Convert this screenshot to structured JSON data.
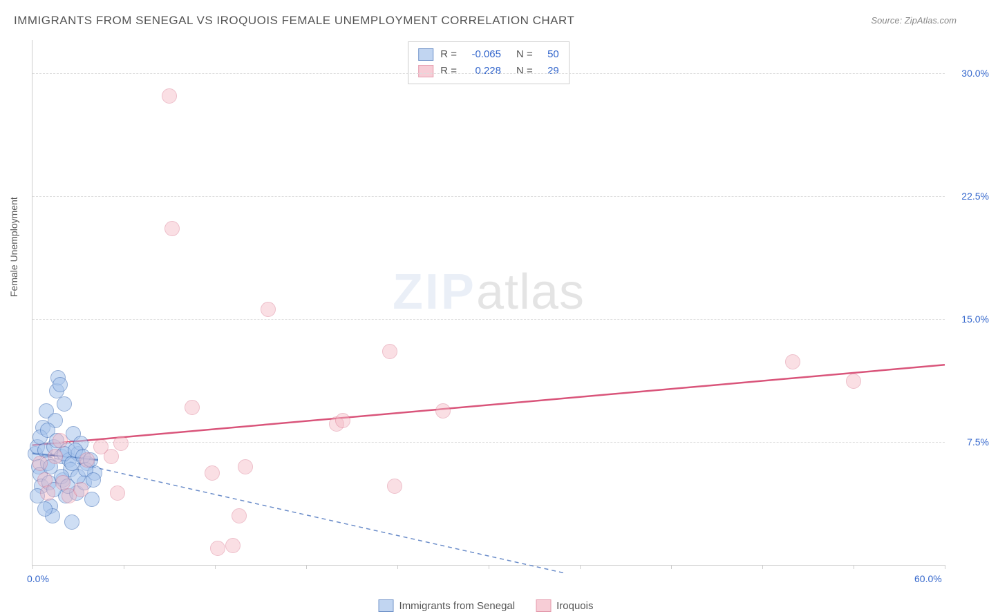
{
  "title": "IMMIGRANTS FROM SENEGAL VS IROQUOIS FEMALE UNEMPLOYMENT CORRELATION CHART",
  "source": "Source: ZipAtlas.com",
  "y_axis_label": "Female Unemployment",
  "watermark_zip": "ZIP",
  "watermark_atlas": "atlas",
  "chart": {
    "type": "scatter",
    "xlim": [
      0,
      60
    ],
    "ylim": [
      0,
      32
    ],
    "x_ticks": [
      0,
      6,
      12,
      18,
      24,
      30,
      36,
      42,
      48,
      54,
      60
    ],
    "x_tick_labels_shown": {
      "0": "0.0%",
      "60": "60.0%"
    },
    "y_ticks": [
      7.5,
      15.0,
      22.5,
      30.0
    ],
    "y_tick_labels": [
      "7.5%",
      "15.0%",
      "22.5%",
      "30.0%"
    ],
    "marker_radius": 10,
    "background_color": "#ffffff",
    "grid_color": "#dddddd",
    "axis_color": "#cccccc"
  },
  "series": [
    {
      "name": "Immigrants from Senegal",
      "fill": "#a7c4ec",
      "fill_opacity": 0.55,
      "stroke": "#3b6bb5",
      "r_value": "-0.065",
      "n_value": "50",
      "trend_solid": {
        "x1": 0,
        "y1": 6.8,
        "x2": 4.3,
        "y2": 6.4,
        "color": "#1f4fa5",
        "width": 2.5
      },
      "trend_dashed": {
        "x1": 0,
        "y1": 6.8,
        "x2": 35.0,
        "y2": -0.5,
        "color": "#6a8cc9",
        "width": 1.5,
        "dash": "6,5"
      },
      "points": [
        [
          0.2,
          6.8
        ],
        [
          0.3,
          7.2
        ],
        [
          0.4,
          6.0
        ],
        [
          0.5,
          5.5
        ],
        [
          0.6,
          4.8
        ],
        [
          0.7,
          8.4
        ],
        [
          0.8,
          7.0
        ],
        [
          0.9,
          9.4
        ],
        [
          1.0,
          6.2
        ],
        [
          1.1,
          5.0
        ],
        [
          1.2,
          3.6
        ],
        [
          1.3,
          3.0
        ],
        [
          1.4,
          7.2
        ],
        [
          1.5,
          8.8
        ],
        [
          1.6,
          10.6
        ],
        [
          1.7,
          11.4
        ],
        [
          1.8,
          11.0
        ],
        [
          1.9,
          6.6
        ],
        [
          2.0,
          5.2
        ],
        [
          2.1,
          9.8
        ],
        [
          2.2,
          4.2
        ],
        [
          2.3,
          7.0
        ],
        [
          2.4,
          6.4
        ],
        [
          2.5,
          5.8
        ],
        [
          2.6,
          2.6
        ],
        [
          2.7,
          8.0
        ],
        [
          2.9,
          4.4
        ],
        [
          3.0,
          6.8
        ],
        [
          3.2,
          7.4
        ],
        [
          3.4,
          5.0
        ],
        [
          3.6,
          6.2
        ],
        [
          3.9,
          4.0
        ],
        [
          4.1,
          5.6
        ],
        [
          0.3,
          4.2
        ],
        [
          0.5,
          7.8
        ],
        [
          0.8,
          3.4
        ],
        [
          1.0,
          8.2
        ],
        [
          1.2,
          6.0
        ],
        [
          1.4,
          4.6
        ],
        [
          1.6,
          7.6
        ],
        [
          1.9,
          5.4
        ],
        [
          2.1,
          6.8
        ],
        [
          2.3,
          4.8
        ],
        [
          2.6,
          6.2
        ],
        [
          2.8,
          7.0
        ],
        [
          3.0,
          5.4
        ],
        [
          3.3,
          6.6
        ],
        [
          3.5,
          5.8
        ],
        [
          3.8,
          6.4
        ],
        [
          4.0,
          5.2
        ]
      ]
    },
    {
      "name": "Iroquois",
      "fill": "#f5b9c5",
      "fill_opacity": 0.45,
      "stroke": "#d9728b",
      "r_value": "0.228",
      "n_value": "29",
      "trend_solid": {
        "x1": 0,
        "y1": 7.3,
        "x2": 60.0,
        "y2": 12.2,
        "color": "#d9547a",
        "width": 2.5
      },
      "points": [
        [
          0.5,
          6.2
        ],
        [
          0.8,
          5.2
        ],
        [
          1.0,
          4.4
        ],
        [
          1.5,
          6.6
        ],
        [
          1.8,
          7.6
        ],
        [
          2.0,
          5.0
        ],
        [
          2.4,
          4.2
        ],
        [
          3.2,
          4.6
        ],
        [
          3.6,
          6.4
        ],
        [
          4.5,
          7.2
        ],
        [
          5.2,
          6.6
        ],
        [
          5.6,
          4.4
        ],
        [
          5.8,
          7.4
        ],
        [
          9.0,
          28.6
        ],
        [
          9.2,
          20.5
        ],
        [
          10.5,
          9.6
        ],
        [
          11.8,
          5.6
        ],
        [
          12.2,
          1.0
        ],
        [
          13.2,
          1.2
        ],
        [
          13.6,
          3.0
        ],
        [
          14.0,
          6.0
        ],
        [
          15.5,
          15.6
        ],
        [
          20.0,
          8.6
        ],
        [
          20.4,
          8.8
        ],
        [
          23.5,
          13.0
        ],
        [
          23.8,
          4.8
        ],
        [
          27.0,
          9.4
        ],
        [
          50.0,
          12.4
        ],
        [
          54.0,
          11.2
        ]
      ]
    }
  ],
  "legend_top_labels": {
    "R": "R =",
    "N": "N ="
  },
  "legend_bottom": [
    "Immigrants from Senegal",
    "Iroquois"
  ]
}
